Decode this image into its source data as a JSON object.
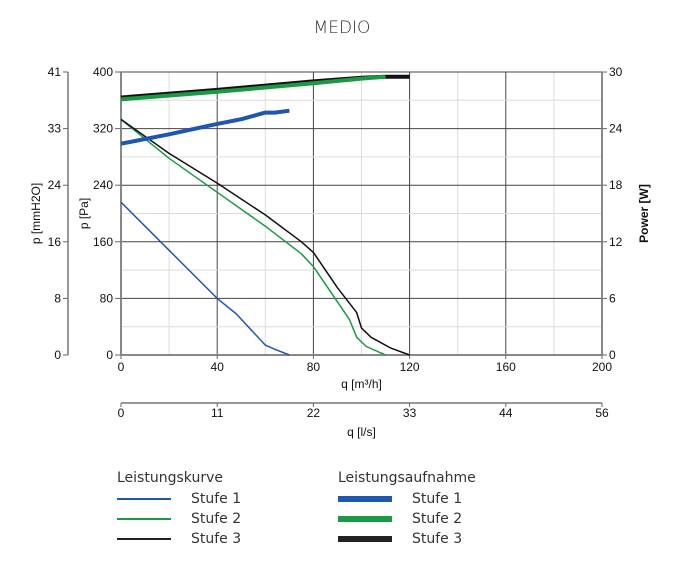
{
  "chart_data": {
    "type": "line",
    "title": "MEDIO",
    "xlabel": "q [m³/h]",
    "xlabel_secondary": "q [l/s]",
    "ylabel_left_outer": "p [mmH2O]",
    "ylabel_left": "p [Pa]",
    "ylabel_right": "Power [W]",
    "x_ticks": [
      0,
      40,
      80,
      120,
      160,
      200
    ],
    "x_ticks_secondary": [
      0,
      11,
      22,
      33,
      44,
      56
    ],
    "y_ticks_pa": [
      0,
      80,
      160,
      240,
      320,
      400
    ],
    "y_ticks_mmh2o": [
      0,
      8,
      16,
      24,
      33,
      41
    ],
    "y_ticks_power": [
      0,
      6,
      12,
      18,
      24,
      30
    ],
    "xlim": [
      0,
      200
    ],
    "ylim_pa": [
      0,
      400
    ],
    "ylim_power": [
      0,
      30
    ],
    "grid": true,
    "series": [
      {
        "name": "Leistungskurve Stufe 1",
        "axis": "pa",
        "color": "#1f56b0",
        "width": 1.5,
        "x": [
          0,
          20,
          40,
          48,
          60,
          64,
          70
        ],
        "y": [
          216,
          148,
          80,
          58,
          14,
          8,
          0
        ]
      },
      {
        "name": "Leistungskurve Stufe 2",
        "axis": "pa",
        "color": "#1a9a45",
        "width": 1.5,
        "x": [
          0,
          20,
          40,
          60,
          75,
          80,
          90,
          95,
          98,
          102,
          110
        ],
        "y": [
          333,
          278,
          230,
          182,
          143,
          125,
          75,
          50,
          25,
          12,
          0
        ]
      },
      {
        "name": "Leistungskurve Stufe 3",
        "axis": "pa",
        "color": "#111111",
        "width": 1.5,
        "x": [
          0,
          20,
          40,
          60,
          75,
          80,
          90,
          98,
          100,
          104,
          112,
          120
        ],
        "y": [
          333,
          285,
          243,
          198,
          160,
          145,
          95,
          60,
          38,
          25,
          10,
          0
        ]
      },
      {
        "name": "Leistungsaufnahme Stufe 1",
        "axis": "power",
        "color": "#1f56b0",
        "width": 4,
        "x": [
          0,
          20,
          40,
          50,
          60,
          64,
          70
        ],
        "y": [
          22.4,
          23.4,
          24.5,
          25.0,
          25.7,
          25.7,
          25.9
        ]
      },
      {
        "name": "Leistungsaufnahme Stufe 3",
        "axis": "power",
        "color": "#111111",
        "width": 4,
        "x": [
          0,
          40,
          80,
          100,
          110,
          120
        ],
        "y": [
          27.3,
          28.1,
          29.0,
          29.4,
          29.5,
          29.5
        ]
      },
      {
        "name": "Leistungsaufnahme Stufe 2",
        "axis": "power",
        "color": "#1a9a45",
        "width": 4,
        "x": [
          0,
          40,
          80,
          100,
          110
        ],
        "y": [
          27.1,
          27.9,
          28.8,
          29.3,
          29.5
        ]
      }
    ]
  },
  "legend": {
    "left": {
      "title": "Leistungskurve",
      "items": [
        {
          "label": "Stufe 1",
          "color": "#1f56b0"
        },
        {
          "label": "Stufe 2",
          "color": "#1a9a45"
        },
        {
          "label": "Stufe 3",
          "color": "#222222"
        }
      ]
    },
    "right": {
      "title": "Leistungsaufnahme",
      "items": [
        {
          "label": "Stufe 1",
          "color": "#1f56b0"
        },
        {
          "label": "Stufe 2",
          "color": "#1a9a45"
        },
        {
          "label": "Stufe 3",
          "color": "#222222"
        }
      ]
    }
  }
}
